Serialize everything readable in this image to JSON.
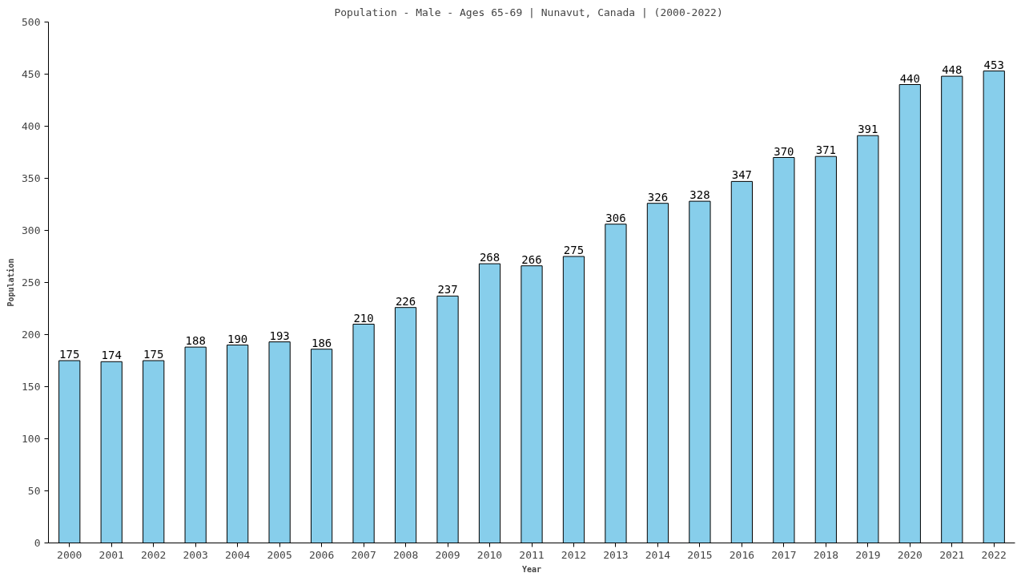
{
  "chart_data": {
    "type": "bar",
    "title": "Population - Male - Ages 65-69 | Nunavut, Canada |  (2000-2022)",
    "xlabel": "Year",
    "ylabel": "Population",
    "categories": [
      "2000",
      "2001",
      "2002",
      "2003",
      "2004",
      "2005",
      "2006",
      "2007",
      "2008",
      "2009",
      "2010",
      "2011",
      "2012",
      "2013",
      "2014",
      "2015",
      "2016",
      "2017",
      "2018",
      "2019",
      "2020",
      "2021",
      "2022"
    ],
    "values": [
      175,
      174,
      175,
      188,
      190,
      193,
      186,
      210,
      226,
      237,
      268,
      266,
      275,
      306,
      326,
      328,
      347,
      370,
      371,
      391,
      440,
      448,
      453
    ],
    "color": "#87ceeb",
    "ylim": [
      0,
      500
    ],
    "yticks": [
      0,
      50,
      100,
      150,
      200,
      250,
      300,
      350,
      400,
      450,
      500
    ],
    "grid": false,
    "data_labels": true
  }
}
